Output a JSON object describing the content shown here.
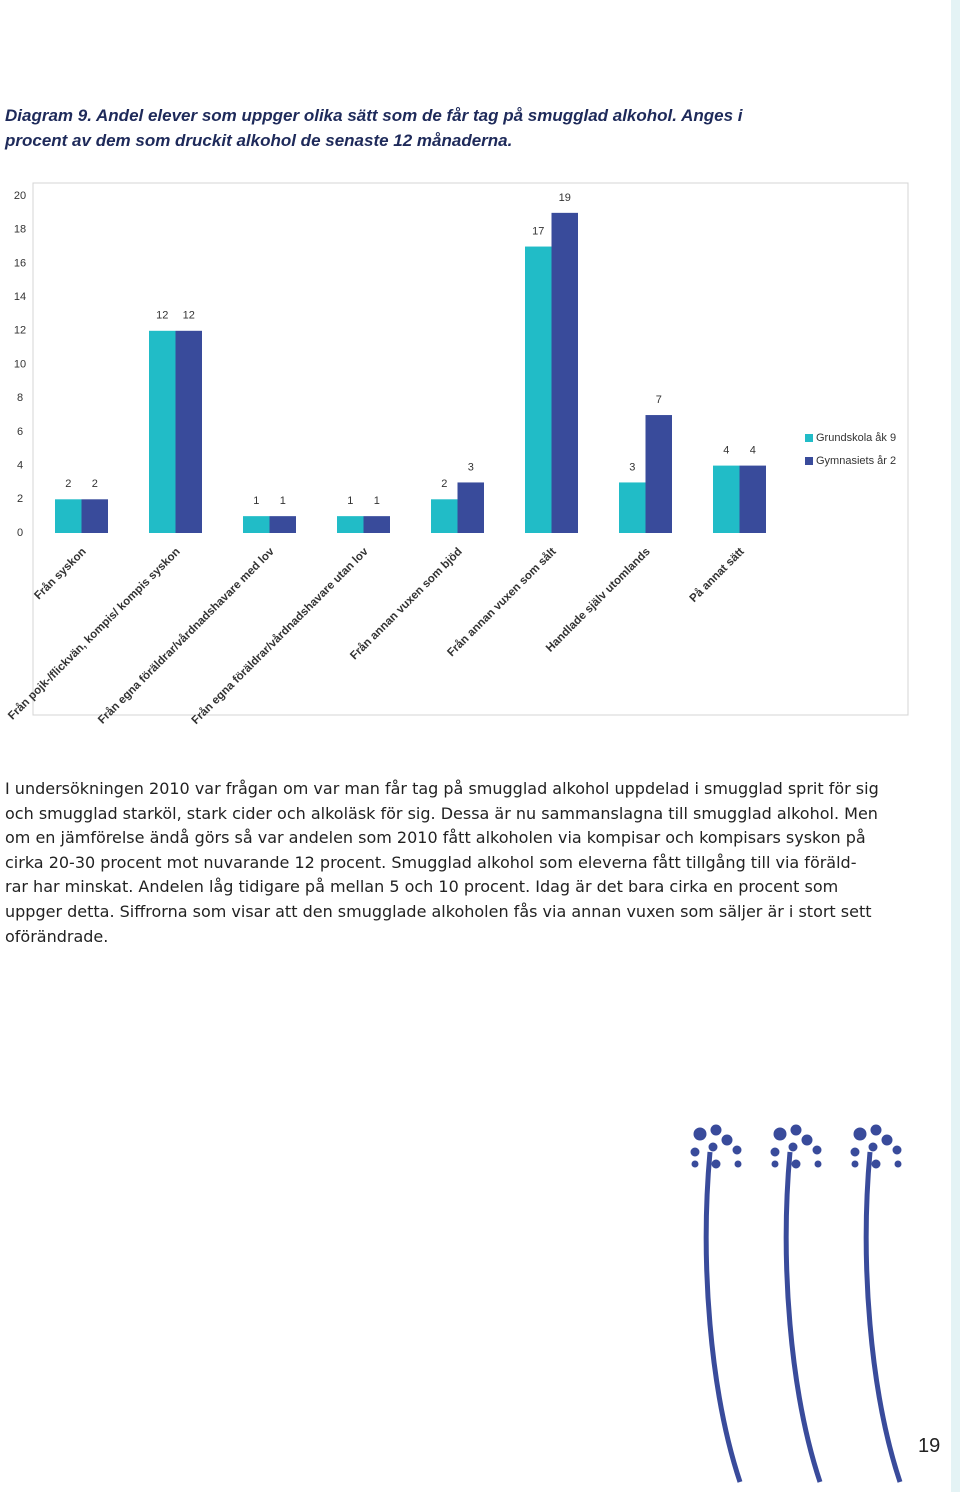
{
  "heading": [
    "Diagram 9. Andel elever som uppger olika sätt som de får tag på smugglad alkohol. Anges i",
    "procent av dem som druckit alkohol de senaste 12 månaderna."
  ],
  "chart_data": {
    "type": "bar",
    "categories": [
      "Från syskon",
      "Från pojk-/flickvän, kompis/ kompis syskon",
      "Från egna föräldrar/vårdnadshavare med lov",
      "Från egna föräldrar/vårdnadshavare utan lov",
      "Från annan vuxen som bjöd",
      "Från annan vuxen som sålt",
      "Handlade själv utomlands",
      "På annat sätt"
    ],
    "series": [
      {
        "name": "Grundskola åk 9",
        "color": "#21bcc7",
        "values": [
          2,
          12,
          1,
          1,
          2,
          17,
          3,
          4
        ]
      },
      {
        "name": "Gymnasiets år 2",
        "color": "#394b9b",
        "values": [
          2,
          12,
          1,
          1,
          3,
          19,
          7,
          4
        ]
      }
    ],
    "ylim": [
      0,
      20
    ],
    "yticks": [
      0,
      2,
      4,
      6,
      8,
      10,
      12,
      14,
      16,
      18,
      20
    ],
    "grid": false,
    "legend": "right"
  },
  "paragraph": [
    "I undersökningen 2010 var frågan om var man får tag på smugglad alkohol uppdelad i smugglad sprit för sig",
    "och smugglad starköl, stark cider och alkoläsk för sig. Dessa är nu sammanslagna till smugglad alkohol. Men",
    "om en jämförelse ändå görs så var andelen som 2010 fått alkoholen via kompisar och kompisars syskon på",
    "cirka 20-30 procent mot nuvarande 12 procent. Smugglad alkohol som eleverna fått tillgång till via föräld-",
    "rar har minskat. Andelen låg tidigare på mellan 5 och 10 procent. Idag är det bara cirka en procent som",
    "uppger detta. Siffrorna som visar att den smugglade alkoholen fås via annan vuxen som säljer är i stort sett",
    "oförändrade."
  ],
  "page_number": "19"
}
